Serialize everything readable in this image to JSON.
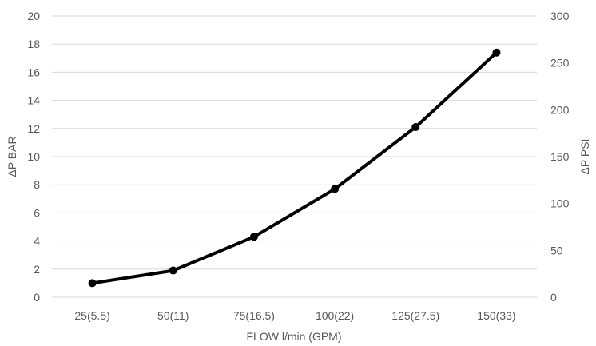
{
  "chart_data": {
    "type": "line",
    "title": "",
    "xlabel": "FLOW l/min (GPM)",
    "ylabel": "ΔP BAR",
    "y2label": "ΔP PSI",
    "categories": [
      "25(5.5)",
      "50(11)",
      "75(16.5)",
      "100(22)",
      "125(27.5)",
      "150(33)"
    ],
    "series": [
      {
        "values": [
          1.0,
          1.9,
          4.3,
          7.7,
          12.1,
          17.4
        ]
      }
    ],
    "ylim": [
      0,
      20
    ],
    "yticks": [
      0,
      2,
      4,
      6,
      8,
      10,
      12,
      14,
      16,
      18,
      20
    ],
    "y2lim": [
      0,
      300
    ],
    "y2ticks": [
      0,
      50,
      100,
      150,
      200,
      250,
      300
    ],
    "grid": true,
    "legend": "none",
    "line_color": "#000000",
    "grid_color": "#d9d9d9",
    "text_color": "#595959"
  }
}
